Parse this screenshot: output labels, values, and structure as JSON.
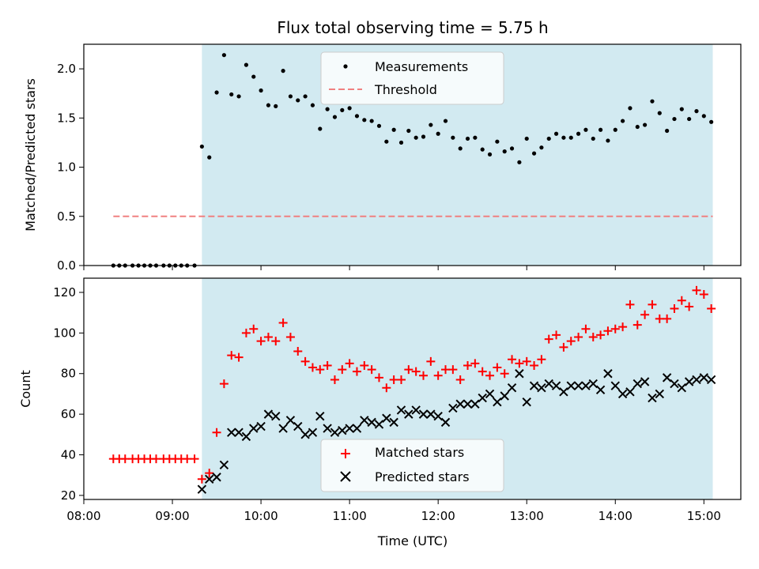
{
  "chart_data": {
    "title": "Flux total observing time = 5.75 h",
    "colors": {
      "shade": "#add8e6",
      "measurement": "#000000",
      "threshold": "#f08080",
      "matched": "#ff0000",
      "predicted": "#000000"
    },
    "top": {
      "type": "scatter",
      "ylabel": "Matched/Predicted stars",
      "ylim": [
        0,
        2.25
      ],
      "yticks": [
        "0.0",
        "0.5",
        "1.0",
        "1.5",
        "2.0"
      ],
      "legend": [
        "Measurements",
        "Threshold"
      ],
      "legend_position": "top-center",
      "shaded_range": [
        "09:20",
        "15:06"
      ],
      "threshold": {
        "name": "Threshold",
        "y": 0.5,
        "x_range": [
          "08:20",
          "15:06"
        ]
      },
      "series": [
        {
          "name": "Measurements",
          "points": [
            [
              "08:20",
              0
            ],
            [
              "08:24",
              0
            ],
            [
              "08:28",
              0
            ],
            [
              "08:33",
              0
            ],
            [
              "08:37",
              0
            ],
            [
              "08:41",
              0
            ],
            [
              "08:45",
              0
            ],
            [
              "08:49",
              0
            ],
            [
              "08:54",
              0
            ],
            [
              "08:58",
              0
            ],
            [
              "09:02",
              0
            ],
            [
              "09:06",
              0
            ],
            [
              "09:10",
              0
            ],
            [
              "09:15",
              0
            ],
            [
              "09:20",
              1.21
            ],
            [
              "09:25",
              1.1
            ],
            [
              "09:30",
              1.76
            ],
            [
              "09:35",
              2.14
            ],
            [
              "09:40",
              1.74
            ],
            [
              "09:45",
              1.72
            ],
            [
              "09:50",
              2.04
            ],
            [
              "09:55",
              1.92
            ],
            [
              "10:00",
              1.78
            ],
            [
              "10:05",
              1.63
            ],
            [
              "10:10",
              1.62
            ],
            [
              "10:15",
              1.98
            ],
            [
              "10:20",
              1.72
            ],
            [
              "10:25",
              1.68
            ],
            [
              "10:30",
              1.72
            ],
            [
              "10:35",
              1.63
            ],
            [
              "10:40",
              1.39
            ],
            [
              "10:45",
              1.59
            ],
            [
              "10:50",
              1.51
            ],
            [
              "10:55",
              1.58
            ],
            [
              "11:00",
              1.6
            ],
            [
              "11:05",
              1.52
            ],
            [
              "11:10",
              1.48
            ],
            [
              "11:15",
              1.47
            ],
            [
              "11:20",
              1.42
            ],
            [
              "11:25",
              1.26
            ],
            [
              "11:30",
              1.38
            ],
            [
              "11:35",
              1.25
            ],
            [
              "11:40",
              1.37
            ],
            [
              "11:45",
              1.3
            ],
            [
              "11:50",
              1.31
            ],
            [
              "11:55",
              1.43
            ],
            [
              "12:00",
              1.34
            ],
            [
              "12:05",
              1.47
            ],
            [
              "12:10",
              1.3
            ],
            [
              "12:15",
              1.19
            ],
            [
              "12:20",
              1.29
            ],
            [
              "12:25",
              1.3
            ],
            [
              "12:30",
              1.18
            ],
            [
              "12:35",
              1.13
            ],
            [
              "12:40",
              1.26
            ],
            [
              "12:45",
              1.16
            ],
            [
              "12:50",
              1.19
            ],
            [
              "12:55",
              1.05
            ],
            [
              "13:00",
              1.29
            ],
            [
              "13:05",
              1.14
            ],
            [
              "13:10",
              1.2
            ],
            [
              "13:15",
              1.29
            ],
            [
              "13:20",
              1.34
            ],
            [
              "13:25",
              1.3
            ],
            [
              "13:30",
              1.3
            ],
            [
              "13:35",
              1.34
            ],
            [
              "13:40",
              1.38
            ],
            [
              "13:45",
              1.29
            ],
            [
              "13:50",
              1.38
            ],
            [
              "13:55",
              1.27
            ],
            [
              "14:00",
              1.38
            ],
            [
              "14:05",
              1.47
            ],
            [
              "14:10",
              1.6
            ],
            [
              "14:15",
              1.41
            ],
            [
              "14:20",
              1.43
            ],
            [
              "14:25",
              1.67
            ],
            [
              "14:30",
              1.55
            ],
            [
              "14:35",
              1.37
            ],
            [
              "14:40",
              1.49
            ],
            [
              "14:45",
              1.59
            ],
            [
              "14:50",
              1.49
            ],
            [
              "14:55",
              1.57
            ],
            [
              "15:00",
              1.52
            ],
            [
              "15:05",
              1.46
            ]
          ]
        }
      ]
    },
    "bottom": {
      "type": "scatter",
      "xlabel": "Time (UTC)",
      "ylabel": "Count",
      "ylim": [
        18,
        127
      ],
      "yticks": [
        "20",
        "40",
        "60",
        "80",
        "100",
        "120"
      ],
      "xticks": [
        "08:00",
        "09:00",
        "10:00",
        "11:00",
        "12:00",
        "13:00",
        "14:00",
        "15:00"
      ],
      "xlim": [
        "08:00",
        "15:25"
      ],
      "legend": [
        "Matched stars",
        "Predicted stars"
      ],
      "legend_position": "bottom-center",
      "shaded_range": [
        "09:20",
        "15:06"
      ],
      "series": [
        {
          "name": "Matched stars",
          "marker": "plus",
          "points": [
            [
              "08:20",
              38
            ],
            [
              "08:24",
              38
            ],
            [
              "08:28",
              38
            ],
            [
              "08:33",
              38
            ],
            [
              "08:37",
              38
            ],
            [
              "08:41",
              38
            ],
            [
              "08:45",
              38
            ],
            [
              "08:49",
              38
            ],
            [
              "08:54",
              38
            ],
            [
              "08:58",
              38
            ],
            [
              "09:02",
              38
            ],
            [
              "09:06",
              38
            ],
            [
              "09:10",
              38
            ],
            [
              "09:15",
              38
            ],
            [
              "09:20",
              28
            ],
            [
              "09:25",
              31
            ],
            [
              "09:30",
              51
            ],
            [
              "09:35",
              75
            ],
            [
              "09:40",
              89
            ],
            [
              "09:45",
              88
            ],
            [
              "09:50",
              100
            ],
            [
              "09:55",
              102
            ],
            [
              "10:00",
              96
            ],
            [
              "10:05",
              98
            ],
            [
              "10:10",
              96
            ],
            [
              "10:15",
              105
            ],
            [
              "10:20",
              98
            ],
            [
              "10:25",
              91
            ],
            [
              "10:30",
              86
            ],
            [
              "10:35",
              83
            ],
            [
              "10:40",
              82
            ],
            [
              "10:45",
              84
            ],
            [
              "10:50",
              77
            ],
            [
              "10:55",
              82
            ],
            [
              "11:00",
              85
            ],
            [
              "11:05",
              81
            ],
            [
              "11:10",
              84
            ],
            [
              "11:15",
              82
            ],
            [
              "11:20",
              78
            ],
            [
              "11:25",
              73
            ],
            [
              "11:30",
              77
            ],
            [
              "11:35",
              77
            ],
            [
              "11:40",
              82
            ],
            [
              "11:45",
              81
            ],
            [
              "11:50",
              79
            ],
            [
              "11:55",
              86
            ],
            [
              "12:00",
              79
            ],
            [
              "12:05",
              82
            ],
            [
              "12:10",
              82
            ],
            [
              "12:15",
              77
            ],
            [
              "12:20",
              84
            ],
            [
              "12:25",
              85
            ],
            [
              "12:30",
              81
            ],
            [
              "12:35",
              79
            ],
            [
              "12:40",
              83
            ],
            [
              "12:45",
              80
            ],
            [
              "12:50",
              87
            ],
            [
              "12:55",
              85
            ],
            [
              "13:00",
              86
            ],
            [
              "13:05",
              84
            ],
            [
              "13:10",
              87
            ],
            [
              "13:15",
              97
            ],
            [
              "13:20",
              99
            ],
            [
              "13:25",
              93
            ],
            [
              "13:30",
              96
            ],
            [
              "13:35",
              98
            ],
            [
              "13:40",
              102
            ],
            [
              "13:45",
              98
            ],
            [
              "13:50",
              99
            ],
            [
              "13:55",
              101
            ],
            [
              "14:00",
              102
            ],
            [
              "14:05",
              103
            ],
            [
              "14:10",
              114
            ],
            [
              "14:15",
              104
            ],
            [
              "14:20",
              109
            ],
            [
              "14:25",
              114
            ],
            [
              "14:30",
              107
            ],
            [
              "14:35",
              107
            ],
            [
              "14:40",
              112
            ],
            [
              "14:45",
              116
            ],
            [
              "14:50",
              113
            ],
            [
              "14:55",
              121
            ],
            [
              "15:00",
              119
            ],
            [
              "15:05",
              112
            ]
          ]
        },
        {
          "name": "Predicted stars",
          "marker": "x",
          "points": [
            [
              "09:20",
              23
            ],
            [
              "09:25",
              28
            ],
            [
              "09:30",
              29
            ],
            [
              "09:35",
              35
            ],
            [
              "09:40",
              51
            ],
            [
              "09:45",
              51
            ],
            [
              "09:50",
              49
            ],
            [
              "09:55",
              53
            ],
            [
              "10:00",
              54
            ],
            [
              "10:05",
              60
            ],
            [
              "10:10",
              59
            ],
            [
              "10:15",
              53
            ],
            [
              "10:20",
              57
            ],
            [
              "10:25",
              54
            ],
            [
              "10:30",
              50
            ],
            [
              "10:35",
              51
            ],
            [
              "10:40",
              59
            ],
            [
              "10:45",
              53
            ],
            [
              "10:50",
              51
            ],
            [
              "10:55",
              52
            ],
            [
              "11:00",
              53
            ],
            [
              "11:05",
              53
            ],
            [
              "11:10",
              57
            ],
            [
              "11:15",
              56
            ],
            [
              "11:20",
              55
            ],
            [
              "11:25",
              58
            ],
            [
              "11:30",
              56
            ],
            [
              "11:35",
              62
            ],
            [
              "11:40",
              60
            ],
            [
              "11:45",
              62
            ],
            [
              "11:50",
              60
            ],
            [
              "11:55",
              60
            ],
            [
              "12:00",
              59
            ],
            [
              "12:05",
              56
            ],
            [
              "12:10",
              63
            ],
            [
              "12:15",
              65
            ],
            [
              "12:20",
              65
            ],
            [
              "12:25",
              65
            ],
            [
              "12:30",
              68
            ],
            [
              "12:35",
              70
            ],
            [
              "12:40",
              66
            ],
            [
              "12:45",
              69
            ],
            [
              "12:50",
              73
            ],
            [
              "12:55",
              80
            ],
            [
              "13:00",
              66
            ],
            [
              "13:05",
              74
            ],
            [
              "13:10",
              73
            ],
            [
              "13:15",
              75
            ],
            [
              "13:20",
              74
            ],
            [
              "13:25",
              71
            ],
            [
              "13:30",
              74
            ],
            [
              "13:35",
              74
            ],
            [
              "13:40",
              74
            ],
            [
              "13:45",
              75
            ],
            [
              "13:50",
              72
            ],
            [
              "13:55",
              80
            ],
            [
              "14:00",
              74
            ],
            [
              "14:05",
              70
            ],
            [
              "14:10",
              71
            ],
            [
              "14:15",
              75
            ],
            [
              "14:20",
              76
            ],
            [
              "14:25",
              68
            ],
            [
              "14:30",
              70
            ],
            [
              "14:35",
              78
            ],
            [
              "14:40",
              75
            ],
            [
              "14:45",
              73
            ],
            [
              "14:50",
              76
            ],
            [
              "14:55",
              77
            ],
            [
              "15:00",
              78
            ],
            [
              "15:05",
              77
            ]
          ]
        }
      ]
    }
  }
}
